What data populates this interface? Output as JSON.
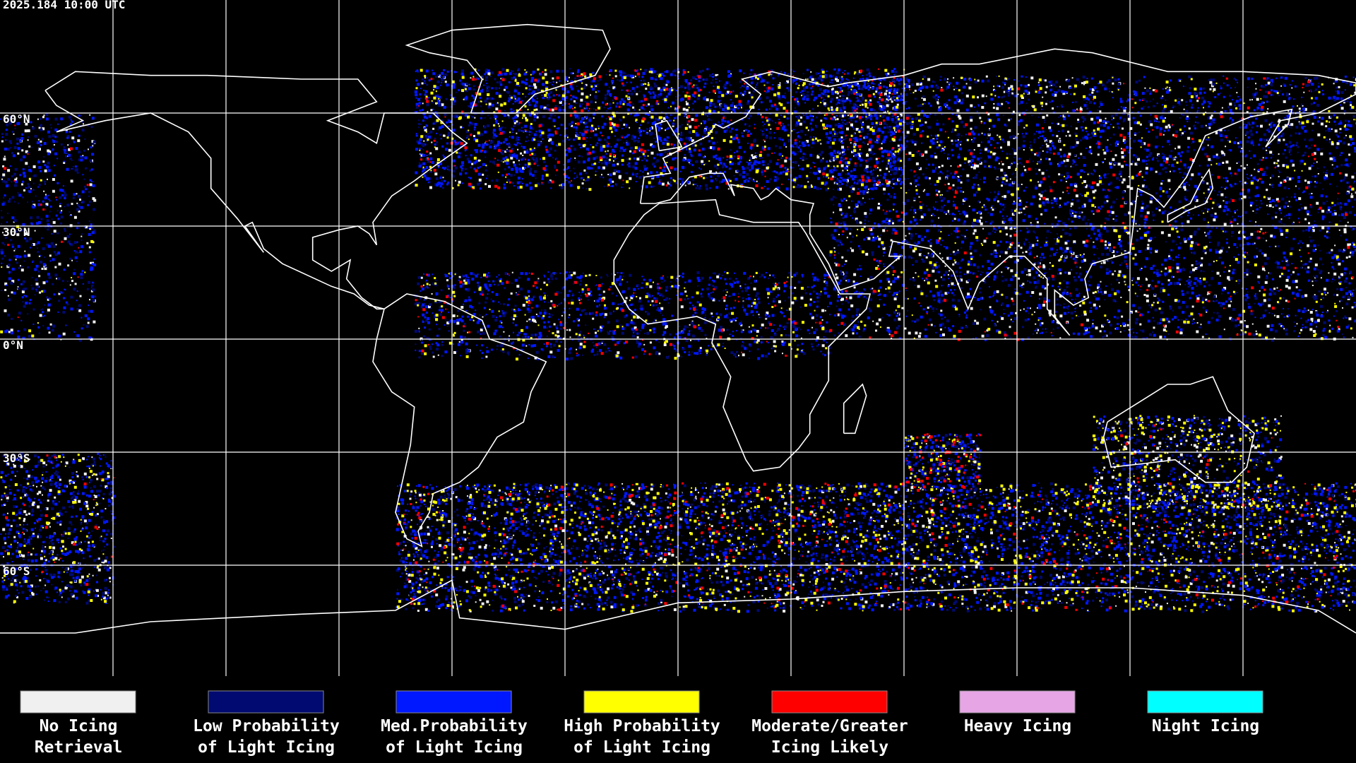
{
  "header": {
    "timestamp": "2025.184 10:00 UTC"
  },
  "map": {
    "latitude_labels": [
      "60°N",
      "30°N",
      "0°N",
      "30°S",
      "60°S"
    ]
  },
  "legend": {
    "items": [
      {
        "color": "#f0f0f0",
        "lines": [
          "No Icing",
          "Retrieval"
        ]
      },
      {
        "color": "#000a70",
        "lines": [
          "Low Probability",
          "of Light Icing"
        ]
      },
      {
        "color": "#0018ff",
        "lines": [
          "Med.Probability",
          "of Light Icing"
        ]
      },
      {
        "color": "#ffff00",
        "lines": [
          "High Probability",
          "of Light Icing"
        ]
      },
      {
        "color": "#ff0000",
        "lines": [
          "Moderate/Greater",
          "Icing Likely"
        ]
      },
      {
        "color": "#e6a6e6",
        "lines": [
          "Heavy Icing"
        ]
      },
      {
        "color": "#00ffff",
        "lines": [
          "Night Icing"
        ]
      }
    ]
  }
}
